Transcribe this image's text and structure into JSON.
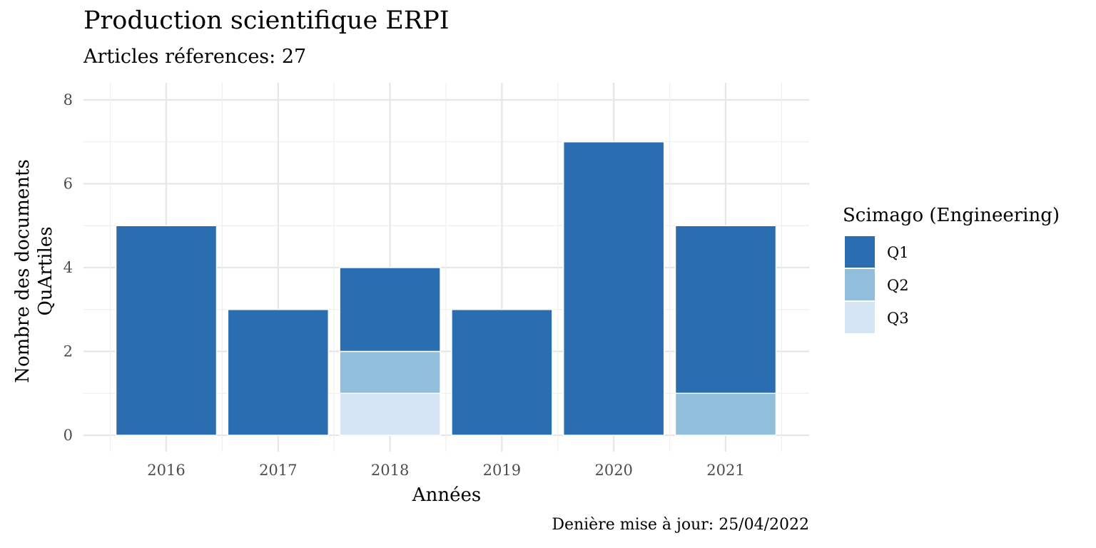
{
  "chart_data": {
    "type": "bar",
    "stacked": true,
    "title": "Production scientifique ERPI",
    "subtitle": "Articles réferences: 27",
    "caption": "Denière mise à jour: 25/04/2022",
    "xlabel": "Années",
    "ylabel": [
      "Nombre des documents",
      "QuArtiles"
    ],
    "categories": [
      "2016",
      "2017",
      "2018",
      "2019",
      "2020",
      "2021"
    ],
    "ylim": [
      0,
      8
    ],
    "yticks": [
      0,
      2,
      4,
      6,
      8
    ],
    "grid": true,
    "legend_title": "Scimago (Engineering)",
    "legend_position": "right",
    "series": [
      {
        "name": "Q3",
        "color": "#d6e5f4",
        "values": [
          0,
          0,
          1,
          0,
          0,
          0
        ]
      },
      {
        "name": "Q2",
        "color": "#91bedb",
        "values": [
          0,
          0,
          1,
          0,
          0,
          1
        ]
      },
      {
        "name": "Q1",
        "color": "#2a6eb1",
        "values": [
          5,
          3,
          2,
          3,
          7,
          4
        ]
      }
    ],
    "legend_order": [
      "Q1",
      "Q2",
      "Q3"
    ]
  }
}
